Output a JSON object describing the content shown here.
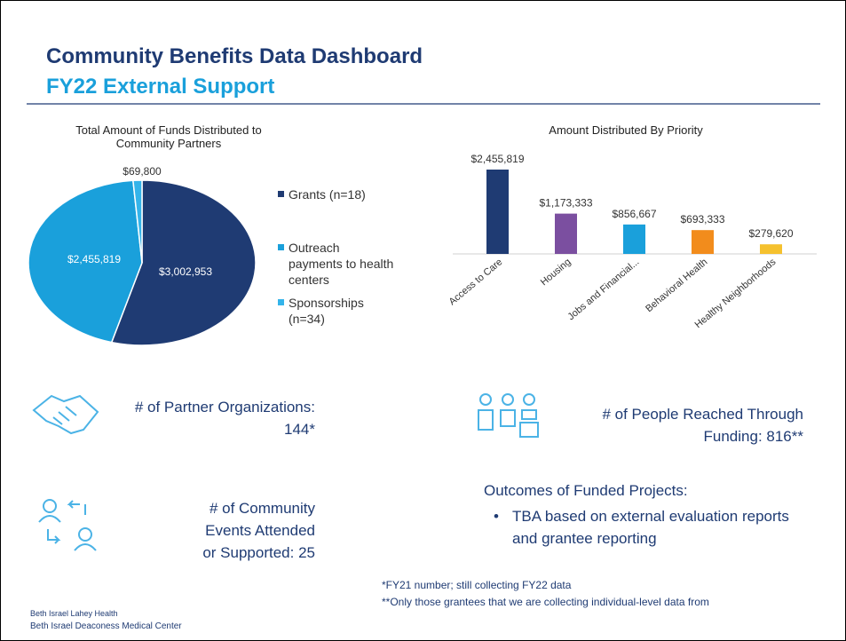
{
  "header": {
    "title": "Community Benefits Data Dashboard",
    "subtitle": "FY22 External Support"
  },
  "chart_data": [
    {
      "type": "pie",
      "title": "Total Amount of Funds Distributed to Community Partners",
      "categories": [
        "Grants (n=18)",
        "Outreach payments to health centers",
        "Sponsorships (n=34)"
      ],
      "values": [
        3002953,
        2455819,
        69800
      ],
      "value_labels": [
        "$3,002,953",
        "$2,455,819",
        "$69,800"
      ],
      "colors": [
        "#1f3b73",
        "#1aa0db",
        "#34b4ea"
      ]
    },
    {
      "type": "bar",
      "title": "Amount Distributed By Priority",
      "categories": [
        "Access to Care",
        "Housing",
        "Jobs and Financial...",
        "Behavioral Health",
        "Healthy Neighborhoods"
      ],
      "values": [
        2455819,
        1173333,
        856667,
        693333,
        279620
      ],
      "value_labels": [
        "$2,455,819",
        "$1,173,333",
        "$856,667",
        "$693,333",
        "$279,620"
      ],
      "colors": [
        "#1f3b73",
        "#7b4fa0",
        "#1aa0db",
        "#f28c1c",
        "#f5c12e"
      ]
    }
  ],
  "stats": {
    "partners": "# of Partner Organizations: 144*",
    "people": "# of People Reached Through Funding: 816**",
    "events": "# of Community Events Attended or Supported: 25"
  },
  "outcomes": {
    "heading": "Outcomes of Funded Projects:",
    "bullet": "TBA based on external evaluation reports and grantee reporting"
  },
  "footnotes": [
    "*FY21 number; still collecting FY22 data",
    "**Only those grantees that we are collecting individual-level data from"
  ],
  "footer": {
    "org": "Beth Israel Lahey Health",
    "center": "Beth Israel Deaconess Medical Center"
  }
}
